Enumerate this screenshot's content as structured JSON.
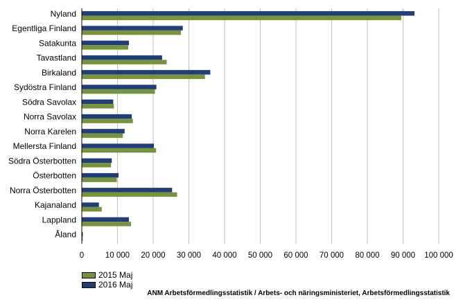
{
  "chart_data": {
    "type": "bar",
    "orientation": "horizontal",
    "categories": [
      "Nyland",
      "Egentliga Finland",
      "Satakunta",
      "Tavastland",
      "Birkaland",
      "Sydöstra Finland",
      "Södra Savolax",
      "Norra Savolax",
      "Norra Karelen",
      "Mellersta Finland",
      "Södra Österbotten",
      "Österbotten",
      "Norra Österbotten",
      "Kajanaland",
      "Lappland",
      "Åland"
    ],
    "series": [
      {
        "name": "2015 Maj",
        "color": "#77933c",
        "values": [
          89500,
          27800,
          13000,
          23800,
          34500,
          20500,
          9000,
          14300,
          11500,
          20800,
          8200,
          9800,
          26700,
          5600,
          13800,
          250
        ]
      },
      {
        "name": "2016 Maj",
        "color": "#1f3e7a",
        "values": [
          93200,
          28300,
          13200,
          22500,
          36000,
          20900,
          8800,
          14000,
          12000,
          20200,
          8400,
          10300,
          25300,
          4800,
          13200,
          250
        ]
      }
    ],
    "xlim": [
      0,
      100000
    ],
    "xticks": [
      "0",
      "10 000",
      "20 000",
      "30 000",
      "40 000",
      "50 000",
      "60 000",
      "70 000",
      "80 000",
      "90 000",
      "100 000"
    ],
    "grid": true,
    "legend": "bottom-left"
  },
  "legend": {
    "items": [
      {
        "label": "2015 Maj",
        "color": "#77933c"
      },
      {
        "label": "2016 Maj",
        "color": "#1f3e7a"
      }
    ]
  },
  "source": "ANM Arbetsförmedlingsstatistik / Arbets- och näringsministeriet, Arbetsförmedlingsstatistik"
}
